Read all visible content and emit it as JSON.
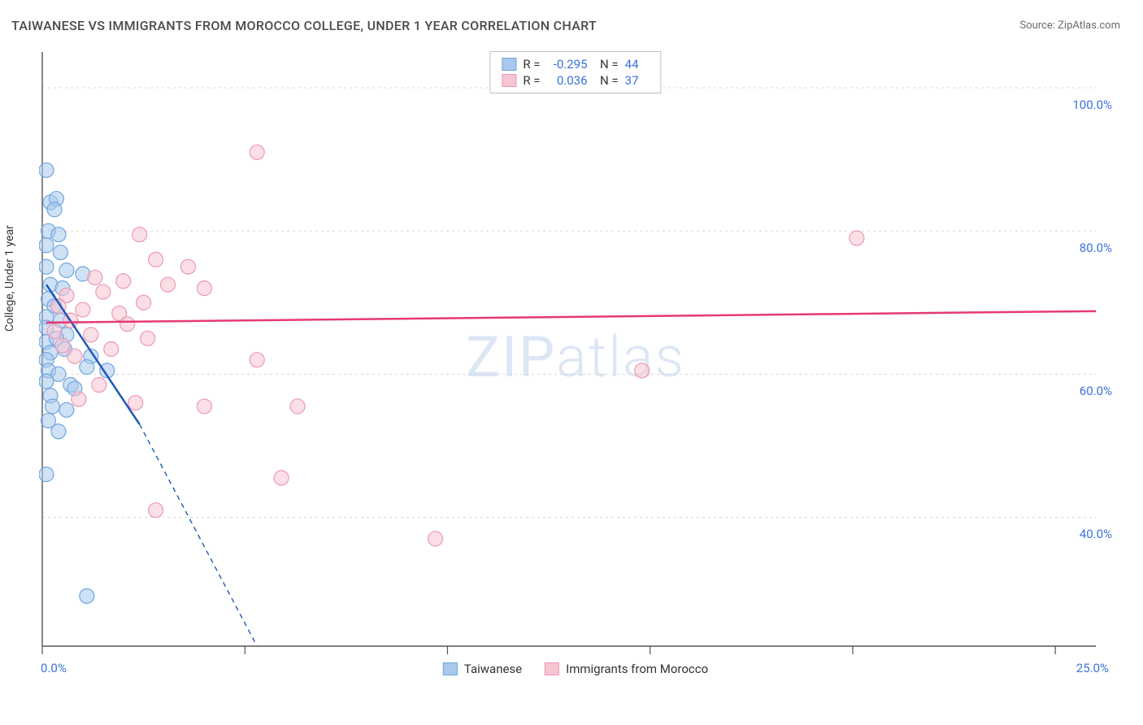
{
  "title": "TAIWANESE VS IMMIGRANTS FROM MOROCCO COLLEGE, UNDER 1 YEAR CORRELATION CHART",
  "source": "Source: ZipAtlas.com",
  "y_axis_label": "College, Under 1 year",
  "watermark": "ZIPatlas",
  "chart": {
    "type": "scatter",
    "xlim": [
      0,
      26
    ],
    "ylim": [
      22,
      105
    ],
    "x_ticks": [
      0,
      5,
      10,
      15,
      20,
      25
    ],
    "x_tick_labels": {
      "start": "0.0%",
      "end": "25.0%"
    },
    "y_ticks": [
      40,
      60,
      80,
      100
    ],
    "y_tick_labels": [
      "40.0%",
      "60.0%",
      "80.0%",
      "100.0%"
    ],
    "grid_color": "#d8d8d8",
    "grid_dash": "3,4",
    "axis_color": "#555555",
    "tick_label_color": "#3b72d9",
    "background_color": "#ffffff",
    "marker_radius": 9,
    "marker_stroke_width": 1.2,
    "trend_line_width": 2.5,
    "series": [
      {
        "name": "Taiwanese",
        "fill_color": "#a8c8ed",
        "stroke_color": "#6fa6e0",
        "fill_opacity": 0.55,
        "trend_color": "#1f58b8",
        "R": "-0.295",
        "N": "44",
        "trend": {
          "x1": 0.1,
          "y1": 72.5,
          "x2": 2.4,
          "y2": 53,
          "dash_extend_x": 5.3,
          "dash_extend_y": 22
        },
        "points": [
          [
            0.1,
            88.5
          ],
          [
            0.2,
            84
          ],
          [
            0.35,
            84.5
          ],
          [
            0.3,
            83
          ],
          [
            0.15,
            80
          ],
          [
            0.4,
            79.5
          ],
          [
            0.1,
            78
          ],
          [
            0.45,
            77
          ],
          [
            0.1,
            75
          ],
          [
            0.6,
            74.5
          ],
          [
            1.0,
            74
          ],
          [
            0.2,
            72.5
          ],
          [
            0.5,
            72
          ],
          [
            0.15,
            70.5
          ],
          [
            0.3,
            69.5
          ],
          [
            0.1,
            68
          ],
          [
            0.45,
            67.5
          ],
          [
            0.1,
            66.5
          ],
          [
            0.6,
            65.5
          ],
          [
            0.1,
            64.5
          ],
          [
            0.35,
            65
          ],
          [
            0.2,
            63
          ],
          [
            0.55,
            63.5
          ],
          [
            0.1,
            62
          ],
          [
            1.2,
            62.5
          ],
          [
            0.15,
            60.5
          ],
          [
            0.4,
            60
          ],
          [
            0.1,
            59
          ],
          [
            0.7,
            58.5
          ],
          [
            0.2,
            57
          ],
          [
            1.1,
            61
          ],
          [
            1.6,
            60.5
          ],
          [
            0.8,
            58
          ],
          [
            0.25,
            55.5
          ],
          [
            0.6,
            55
          ],
          [
            0.15,
            53.5
          ],
          [
            0.4,
            52
          ],
          [
            0.1,
            46
          ],
          [
            1.1,
            29
          ]
        ]
      },
      {
        "name": "Immigrants from Morocco",
        "fill_color": "#f7c4d1",
        "stroke_color": "#ec99b0",
        "fill_opacity": 0.55,
        "trend_color": "#e63975",
        "R": "0.036",
        "N": "37",
        "trend": {
          "x1": 0.1,
          "y1": 67.2,
          "x2": 26,
          "y2": 68.8
        },
        "points": [
          [
            5.3,
            91
          ],
          [
            2.4,
            79.5
          ],
          [
            20.1,
            79
          ],
          [
            2.8,
            76
          ],
          [
            3.6,
            75
          ],
          [
            1.3,
            73.5
          ],
          [
            2.0,
            73
          ],
          [
            3.1,
            72.5
          ],
          [
            4.0,
            72
          ],
          [
            0.6,
            71
          ],
          [
            1.5,
            71.5
          ],
          [
            2.5,
            70
          ],
          [
            1.0,
            69
          ],
          [
            0.4,
            69.5
          ],
          [
            1.9,
            68.5
          ],
          [
            0.7,
            67.5
          ],
          [
            2.1,
            67
          ],
          [
            0.3,
            66
          ],
          [
            1.2,
            65.5
          ],
          [
            2.6,
            65
          ],
          [
            0.5,
            64
          ],
          [
            1.7,
            63.5
          ],
          [
            0.8,
            62.5
          ],
          [
            5.3,
            62
          ],
          [
            14.8,
            60.5
          ],
          [
            1.4,
            58.5
          ],
          [
            2.3,
            56
          ],
          [
            0.9,
            56.5
          ],
          [
            4.0,
            55.5
          ],
          [
            6.3,
            55.5
          ],
          [
            2.8,
            41
          ],
          [
            5.9,
            45.5
          ],
          [
            9.7,
            37
          ]
        ]
      }
    ]
  },
  "legend": {
    "items": [
      {
        "label": "Taiwanese",
        "fill": "#a8c8ed",
        "stroke": "#6fa6e0"
      },
      {
        "label": "Immigrants from Morocco",
        "fill": "#f7c4d1",
        "stroke": "#ec99b0"
      }
    ]
  }
}
